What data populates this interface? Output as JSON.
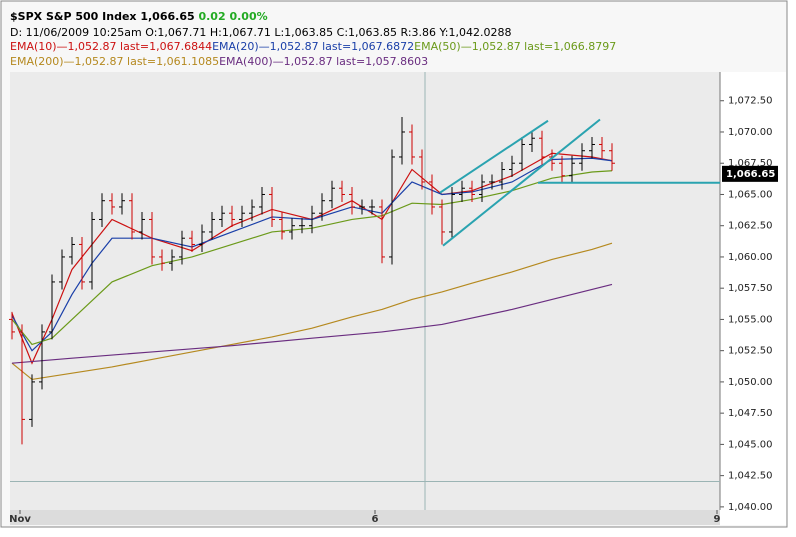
{
  "header": {
    "symbol": "$SPX S&P 500 Index",
    "price": "1,066.65",
    "change": "0.02",
    "change_pct": "0.00%",
    "info": "D: 11/06/2009 10:25am O:1,067.71 H:1,067.71 L:1,063.85 C:1,063.85 R:3.86 Y:1,042.0288"
  },
  "chart_data": {
    "type": "ohlc",
    "x": [
      0,
      1,
      2,
      3,
      4,
      5,
      6,
      7,
      8,
      9,
      10,
      11,
      12,
      13,
      14,
      15,
      16,
      17,
      18,
      19,
      20,
      21,
      22,
      23,
      24,
      25,
      26,
      27,
      28,
      29,
      30,
      31,
      32,
      33,
      34,
      35,
      36,
      37,
      38,
      39,
      40,
      41,
      42,
      43,
      44,
      45,
      46,
      47,
      48,
      49,
      50,
      51,
      52,
      53,
      54,
      55,
      56,
      57,
      58,
      59,
      60
    ],
    "open": [
      1055,
      1054,
      1047,
      1050,
      1054,
      1058,
      1060,
      1061,
      1058,
      1063,
      1064.5,
      1064,
      1064.5,
      1062,
      1063,
      1060,
      1059.5,
      1060,
      1061.5,
      1061,
      1062,
      1063,
      1063.5,
      1063,
      1063.5,
      1064,
      1065,
      1063,
      1062,
      1062.5,
      1062.5,
      1063.5,
      1064.5,
      1065.5,
      1065,
      1064,
      1064,
      1064,
      1060,
      1068,
      1070,
      1068,
      1066,
      1064,
      1062,
      1065,
      1065.5,
      1065,
      1066,
      1066,
      1067,
      1067.5,
      1069,
      1069.5,
      1068,
      1067.5,
      1066.5,
      1067.5,
      1068.5,
      1069,
      1068.5
    ],
    "high": [
      1055.6,
      1054.6,
      1050.6,
      1054.6,
      1058.6,
      1060.6,
      1061.6,
      1061.6,
      1063.6,
      1065.1,
      1065.1,
      1065.1,
      1065.1,
      1063.6,
      1063.6,
      1060.6,
      1060.6,
      1062.1,
      1062.1,
      1062.6,
      1063.6,
      1064.1,
      1064.1,
      1064.1,
      1064.6,
      1065.6,
      1065.6,
      1063.6,
      1063.1,
      1063.1,
      1064.1,
      1065.1,
      1066.1,
      1066.1,
      1065.6,
      1064.6,
      1064.6,
      1064.6,
      1068.6,
      1071.2,
      1070.6,
      1068.6,
      1066.6,
      1064.6,
      1065.6,
      1066.1,
      1066.1,
      1066.6,
      1066.6,
      1067.6,
      1068.1,
      1069.6,
      1070.1,
      1070.1,
      1068.6,
      1068.1,
      1068.1,
      1069.1,
      1069.6,
      1069.6,
      1069.1
    ],
    "low": [
      1053.4,
      1045.0,
      1046.4,
      1049.4,
      1053.4,
      1057.4,
      1059.4,
      1057.4,
      1057.4,
      1062.4,
      1063.4,
      1063.4,
      1061.4,
      1061.4,
      1059.4,
      1058.9,
      1058.9,
      1059.4,
      1060.4,
      1060.4,
      1061.4,
      1062.4,
      1062.4,
      1062.4,
      1062.9,
      1063.4,
      1062.4,
      1061.4,
      1061.4,
      1061.9,
      1061.9,
      1062.9,
      1063.9,
      1064.4,
      1063.4,
      1063.4,
      1063.4,
      1059.5,
      1059.4,
      1067.4,
      1067.4,
      1065.4,
      1063.4,
      1061.0,
      1061.4,
      1064.4,
      1064.4,
      1064.4,
      1065.4,
      1065.4,
      1066.4,
      1066.9,
      1068.4,
      1067.4,
      1066.9,
      1065.9,
      1065.9,
      1066.9,
      1067.9,
      1067.9,
      1066.9
    ],
    "close": [
      1054,
      1047,
      1050,
      1054,
      1058,
      1060,
      1061,
      1058,
      1063,
      1064.5,
      1064,
      1064.5,
      1062,
      1063,
      1060,
      1059.5,
      1060,
      1061.5,
      1061,
      1062,
      1063,
      1063.5,
      1063,
      1063.5,
      1064,
      1065,
      1063,
      1062,
      1062.5,
      1062.5,
      1063.5,
      1064.5,
      1065.5,
      1065,
      1064,
      1064,
      1064,
      1060,
      1068,
      1070,
      1068,
      1066,
      1064,
      1062,
      1065,
      1065.5,
      1065,
      1066,
      1066,
      1067,
      1067.5,
      1069,
      1069.5,
      1068,
      1067.5,
      1066.5,
      1067.5,
      1068.5,
      1069,
      1068.5,
      1067.5
    ],
    "up_color": "#000000",
    "down_color": "#cc0000",
    "series": [
      {
        "name": "EMA(10)",
        "legend_text": "—1,052.87 last=1,067.6844",
        "color": "#cc1111",
        "x": [
          0,
          2,
          4,
          6,
          8,
          10,
          14,
          18,
          22,
          26,
          30,
          34,
          37,
          40,
          43,
          46,
          50,
          54,
          58,
          60
        ],
        "values": [
          1055.5,
          1051.5,
          1055,
          1059,
          1061,
          1063,
          1061.5,
          1060.5,
          1062.5,
          1063.8,
          1063,
          1064.5,
          1063,
          1067,
          1065,
          1065.3,
          1066.5,
          1068.3,
          1068,
          1067.7
        ]
      },
      {
        "name": "EMA(20)",
        "legend_text": "—1,052.87 last=1,067.6872",
        "color": "#1a3fa8",
        "x": [
          0,
          2,
          4,
          6,
          8,
          10,
          14,
          18,
          22,
          26,
          30,
          34,
          37,
          40,
          43,
          46,
          50,
          54,
          58,
          60
        ],
        "values": [
          1055.3,
          1052.5,
          1054,
          1057,
          1059.5,
          1061.5,
          1061.5,
          1060.8,
          1062,
          1063.2,
          1063,
          1064,
          1063.5,
          1066,
          1065,
          1065.2,
          1066,
          1067.8,
          1067.9,
          1067.7
        ]
      },
      {
        "name": "EMA(50)",
        "legend_text": "—1,052.87 last=1,066.8797",
        "color": "#6b9a1a",
        "x": [
          0,
          2,
          4,
          6,
          8,
          10,
          14,
          18,
          22,
          26,
          30,
          34,
          37,
          40,
          43,
          46,
          50,
          54,
          58,
          60
        ],
        "values": [
          1055,
          1053,
          1053.5,
          1055,
          1056.5,
          1058,
          1059.3,
          1060,
          1061,
          1062,
          1062.3,
          1063,
          1063.3,
          1064.3,
          1064.2,
          1064.6,
          1065.3,
          1066.3,
          1066.8,
          1066.9
        ]
      },
      {
        "name": "EMA(200)",
        "legend_text": "—1,052.87 last=1,061.1085",
        "color": "#b5891f",
        "x": [
          0,
          2,
          6,
          10,
          14,
          18,
          22,
          26,
          30,
          34,
          37,
          40,
          43,
          46,
          50,
          54,
          58,
          60
        ],
        "values": [
          1051.5,
          1050.2,
          1050.7,
          1051.2,
          1051.8,
          1052.4,
          1053.0,
          1053.6,
          1054.3,
          1055.2,
          1055.8,
          1056.6,
          1057.2,
          1057.9,
          1058.8,
          1059.8,
          1060.6,
          1061.1
        ]
      },
      {
        "name": "EMA(400)",
        "legend_text": "—1,052.87 last=1,057.8603",
        "color": "#6a2d80",
        "x": [
          0,
          6,
          14,
          22,
          30,
          37,
          43,
          50,
          56,
          60
        ],
        "values": [
          1051.5,
          1051.9,
          1052.4,
          1052.9,
          1053.5,
          1054.0,
          1054.6,
          1055.8,
          1057.0,
          1057.8
        ]
      }
    ],
    "trendlines": [
      {
        "x": [
          42.8,
          53.6
        ],
        "y": [
          1065.14,
          1070.9
        ]
      },
      {
        "x": [
          43.1,
          58.8
        ],
        "y": [
          1060.9,
          1071.0
        ]
      },
      {
        "x": [
          52.6,
          70.8
        ],
        "y": [
          1065.94,
          1065.94
        ]
      }
    ],
    "trend_color": "#2aa3b0",
    "crosshair": {
      "x": 41.3,
      "y": 1042.0288
    },
    "last_price": {
      "value": 1066.65,
      "label": "1,066.65"
    },
    "xlim": [
      -0.2,
      70.8
    ],
    "ylim": [
      1039.75,
      1074.8
    ],
    "xticks": [
      {
        "value": 0.8,
        "label": "Nov"
      },
      {
        "value": 36.3,
        "label": "6"
      },
      {
        "value": 70.5,
        "label": "9"
      }
    ],
    "yticks": [
      {
        "value": 1040,
        "label": "1,040.00"
      },
      {
        "value": 1042.5,
        "label": "1,042.50"
      },
      {
        "value": 1045,
        "label": "1,045.00"
      },
      {
        "value": 1047.5,
        "label": "1,047.50"
      },
      {
        "value": 1050,
        "label": "1,050.00"
      },
      {
        "value": 1052.5,
        "label": "1,052.50"
      },
      {
        "value": 1055,
        "label": "1,055.00"
      },
      {
        "value": 1057.5,
        "label": "1,057.50"
      },
      {
        "value": 1060,
        "label": "1,060.00"
      },
      {
        "value": 1062.5,
        "label": "1,062.50"
      },
      {
        "value": 1065,
        "label": "1,065.00"
      },
      {
        "value": 1067.5,
        "label": "1,067.50"
      },
      {
        "value": 1070,
        "label": "1,070.00"
      },
      {
        "value": 1072.5,
        "label": "1,072.50"
      }
    ],
    "grid": false
  }
}
